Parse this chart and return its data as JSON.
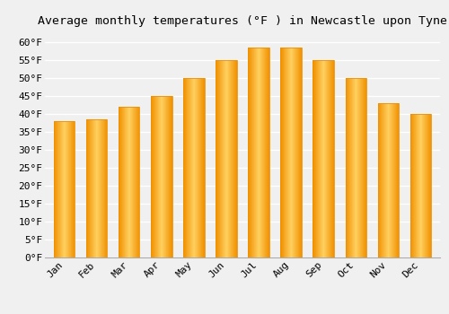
{
  "title": "Average monthly temperatures (°F ) in Newcastle upon Tyne",
  "months": [
    "Jan",
    "Feb",
    "Mar",
    "Apr",
    "May",
    "Jun",
    "Jul",
    "Aug",
    "Sep",
    "Oct",
    "Nov",
    "Dec"
  ],
  "values": [
    38,
    38.5,
    42,
    45,
    50,
    55,
    58.5,
    58.5,
    55,
    50,
    43,
    40
  ],
  "bar_color_light": "#FFD060",
  "bar_color_dark": "#F09000",
  "background_color": "#f0f0f0",
  "grid_color": "#ffffff",
  "ylim": [
    0,
    63
  ],
  "yticks": [
    0,
    5,
    10,
    15,
    20,
    25,
    30,
    35,
    40,
    45,
    50,
    55,
    60
  ],
  "title_fontsize": 9.5,
  "tick_fontsize": 8,
  "tick_font_family": "monospace",
  "bar_width": 0.65
}
